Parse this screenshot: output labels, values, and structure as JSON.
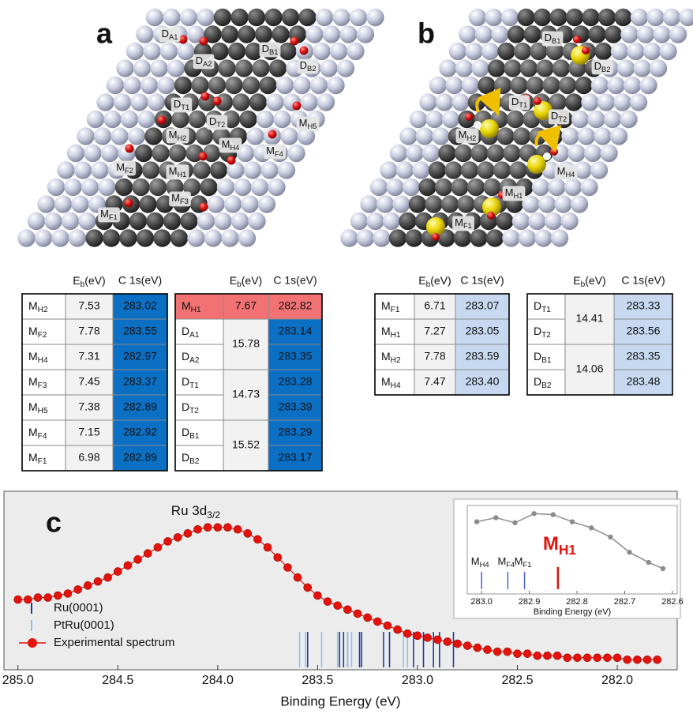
{
  "panel_a": {
    "letter": "a",
    "labels": [
      {
        "base": "D",
        "sub": "A1"
      },
      {
        "base": "D",
        "sub": "A2"
      },
      {
        "base": "D",
        "sub": "B1"
      },
      {
        "base": "D",
        "sub": "B2"
      },
      {
        "base": "D",
        "sub": "T1"
      },
      {
        "base": "D",
        "sub": "T2"
      },
      {
        "base": "M",
        "sub": "H5"
      },
      {
        "base": "M",
        "sub": "H2"
      },
      {
        "base": "M",
        "sub": "H4"
      },
      {
        "base": "M",
        "sub": "F4"
      },
      {
        "base": "M",
        "sub": "F2"
      },
      {
        "base": "M",
        "sub": "H1"
      },
      {
        "base": "M",
        "sub": "F3"
      },
      {
        "base": "M",
        "sub": "F1"
      }
    ],
    "tables": [
      {
        "eb_header": {
          "base": "E",
          "sub": "b",
          "suffix": "(eV)"
        },
        "c1s_header": "C 1s(eV)",
        "c1s_color": "#0b6fc4",
        "c1s_text_color": "#ffffff",
        "highlight_color": "#f27274",
        "groups": [
          {
            "eb": "7.53",
            "rows": [
              {
                "label": {
                  "base": "M",
                  "sub": "H2"
                },
                "c1s": "283.02"
              }
            ]
          },
          {
            "eb": "7.78",
            "rows": [
              {
                "label": {
                  "base": "M",
                  "sub": "F2"
                },
                "c1s": "283.55"
              }
            ]
          },
          {
            "eb": "7.31",
            "rows": [
              {
                "label": {
                  "base": "M",
                  "sub": "H4"
                },
                "c1s": "282.97"
              }
            ]
          },
          {
            "eb": "7.45",
            "rows": [
              {
                "label": {
                  "base": "M",
                  "sub": "F3"
                },
                "c1s": "283.37"
              }
            ]
          },
          {
            "eb": "7.38",
            "rows": [
              {
                "label": {
                  "base": "M",
                  "sub": "H5"
                },
                "c1s": "282.89"
              }
            ]
          },
          {
            "eb": "7.15",
            "rows": [
              {
                "label": {
                  "base": "M",
                  "sub": "F4"
                },
                "c1s": "282.92"
              }
            ]
          },
          {
            "eb": "6.98",
            "rows": [
              {
                "label": {
                  "base": "M",
                  "sub": "F1"
                },
                "c1s": "282.89"
              }
            ]
          }
        ]
      },
      {
        "eb_header": {
          "base": "E",
          "sub": "b",
          "suffix": "(eV)"
        },
        "c1s_header": "C 1s(eV)",
        "c1s_color": "#0b6fc4",
        "c1s_text_color": "#ffffff",
        "highlight_color": "#f27274",
        "groups": [
          {
            "eb": "7.67",
            "highlight": true,
            "rows": [
              {
                "label": {
                  "base": "M",
                  "sub": "H1"
                },
                "c1s": "282.82"
              }
            ]
          },
          {
            "eb": "15.78",
            "rows": [
              {
                "label": {
                  "base": "D",
                  "sub": "A1"
                },
                "c1s": "283.14"
              },
              {
                "label": {
                  "base": "D",
                  "sub": "A2"
                },
                "c1s": "283.35"
              }
            ]
          },
          {
            "eb": "14.73",
            "rows": [
              {
                "label": {
                  "base": "D",
                  "sub": "T1"
                },
                "c1s": "283.28"
              },
              {
                "label": {
                  "base": "D",
                  "sub": "T2"
                },
                "c1s": "283.39"
              }
            ]
          },
          {
            "eb": "15.52",
            "rows": [
              {
                "label": {
                  "base": "D",
                  "sub": "B1"
                },
                "c1s": "283.29"
              },
              {
                "label": {
                  "base": "D",
                  "sub": "B2"
                },
                "c1s": "283.17"
              }
            ]
          }
        ]
      }
    ]
  },
  "panel_b": {
    "letter": "b",
    "labels": [
      {
        "base": "D",
        "sub": "B1"
      },
      {
        "base": "D",
        "sub": "B2"
      },
      {
        "base": "D",
        "sub": "T1"
      },
      {
        "base": "D",
        "sub": "T2"
      },
      {
        "base": "M",
        "sub": "H2"
      },
      {
        "base": "M",
        "sub": "H4"
      },
      {
        "base": "M",
        "sub": "H1"
      },
      {
        "base": "M",
        "sub": "F1"
      }
    ],
    "tables": [
      {
        "eb_header": {
          "base": "E",
          "sub": "b",
          "suffix": "(eV)"
        },
        "c1s_header": "C 1s(eV)",
        "c1s_color": "#c6d9f0",
        "c1s_text_color": "#111111",
        "highlight_color": "#f27274",
        "groups": [
          {
            "eb": "6.71",
            "rows": [
              {
                "label": {
                  "base": "M",
                  "sub": "F1"
                },
                "c1s": "283.07"
              }
            ]
          },
          {
            "eb": "7.27",
            "rows": [
              {
                "label": {
                  "base": "M",
                  "sub": "H1"
                },
                "c1s": "283.05"
              }
            ]
          },
          {
            "eb": "7.78",
            "rows": [
              {
                "label": {
                  "base": "M",
                  "sub": "H2"
                },
                "c1s": "283.59"
              }
            ]
          },
          {
            "eb": "7.47",
            "rows": [
              {
                "label": {
                  "base": "M",
                  "sub": "H4"
                },
                "c1s": "283.40"
              }
            ]
          }
        ]
      },
      {
        "eb_header": {
          "base": "E",
          "sub": "b",
          "suffix": "(eV)"
        },
        "c1s_header": "C 1s(eV)",
        "c1s_color": "#c6d9f0",
        "c1s_text_color": "#111111",
        "highlight_color": "#f27274",
        "groups": [
          {
            "eb": "14.41",
            "rows": [
              {
                "label": {
                  "base": "D",
                  "sub": "T1"
                },
                "c1s": "283.33"
              },
              {
                "label": {
                  "base": "D",
                  "sub": "T2"
                },
                "c1s": "283.56"
              }
            ]
          },
          {
            "eb": "14.06",
            "rows": [
              {
                "label": {
                  "base": "D",
                  "sub": "B1"
                },
                "c1s": "283.35"
              },
              {
                "label": {
                  "base": "D",
                  "sub": "B2"
                },
                "c1s": "283.48"
              }
            ]
          }
        ]
      }
    ]
  },
  "chart_data": {
    "type": "line",
    "panel_letter": "c",
    "xlabel": "Binding Energy (eV)",
    "annotation": {
      "base": "Ru 3d",
      "sub": "3/2"
    },
    "xlim": [
      285.07,
      281.7
    ],
    "ylim": [
      0.12,
      1.01
    ],
    "xticks": [
      {
        "value": 285,
        "label": "285.0"
      },
      284.5,
      {
        "value": 284,
        "label": "284.0"
      },
      283.5,
      {
        "value": 283,
        "label": "283.0"
      },
      282.5,
      {
        "value": 282,
        "label": "282.0"
      }
    ],
    "legend": "lower left",
    "series": [
      {
        "name": "Ru(0001)",
        "color": "#1f3a9e",
        "style": "stick",
        "x": [
          283.02,
          283.55,
          282.97,
          283.37,
          282.89,
          282.92,
          282.89,
          282.82,
          283.14,
          283.35,
          283.28,
          283.39,
          283.29,
          283.17
        ]
      },
      {
        "name": "PtRu(0001)",
        "color": "#8cc4ee",
        "style": "stick",
        "x": [
          283.07,
          283.05,
          283.59,
          283.4,
          283.33,
          283.56,
          283.35,
          283.48
        ]
      },
      {
        "name": "Experimental spectrum",
        "color": "#e3120b",
        "style": "line-marker",
        "x": [
          285.0,
          284.95,
          284.9,
          284.85,
          284.8,
          284.75,
          284.7,
          284.65,
          284.6,
          284.55,
          284.5,
          284.45,
          284.4,
          284.35,
          284.3,
          284.25,
          284.2,
          284.15,
          284.1,
          284.05,
          284.0,
          283.95,
          283.9,
          283.85,
          283.8,
          283.75,
          283.7,
          283.65,
          283.6,
          283.55,
          283.5,
          283.45,
          283.4,
          283.35,
          283.3,
          283.25,
          283.2,
          283.15,
          283.1,
          283.05,
          283.0,
          282.95,
          282.9,
          282.85,
          282.8,
          282.75,
          282.7,
          282.65,
          282.6,
          282.55,
          282.5,
          282.45,
          282.4,
          282.35,
          282.3,
          282.25,
          282.2,
          282.15,
          282.1,
          282.05,
          282.0,
          281.95,
          281.9,
          281.85,
          281.8
        ],
        "values": [
          0.47,
          0.47,
          0.48,
          0.48,
          0.49,
          0.5,
          0.52,
          0.54,
          0.56,
          0.58,
          0.61,
          0.64,
          0.67,
          0.7,
          0.73,
          0.76,
          0.78,
          0.8,
          0.82,
          0.83,
          0.83,
          0.83,
          0.82,
          0.8,
          0.77,
          0.73,
          0.68,
          0.63,
          0.58,
          0.53,
          0.49,
          0.46,
          0.44,
          0.42,
          0.4,
          0.38,
          0.36,
          0.34,
          0.32,
          0.3,
          0.29,
          0.28,
          0.27,
          0.26,
          0.25,
          0.24,
          0.23,
          0.22,
          0.21,
          0.21,
          0.2,
          0.2,
          0.19,
          0.19,
          0.19,
          0.18,
          0.18,
          0.18,
          0.18,
          0.18,
          0.18,
          0.17,
          0.17,
          0.17,
          0.17
        ]
      }
    ],
    "inset": {
      "xlabel": "Binding Energy (eV)",
      "xlim": [
        283.03,
        282.59
      ],
      "ylim": [
        0.17,
        1.04
      ],
      "xticks": [
        {
          "value": 283,
          "label": "283.0"
        },
        282.9,
        282.8,
        282.7,
        282.6
      ],
      "line": {
        "color": "#8c8c8c",
        "x": [
          283.01,
          282.97,
          282.93,
          282.89,
          282.85,
          282.81,
          282.77,
          282.73,
          282.69,
          282.65,
          282.62
        ],
        "values": [
          0.88,
          0.92,
          0.87,
          0.96,
          0.95,
          0.88,
          0.82,
          0.73,
          0.58,
          0.48,
          0.42
        ]
      },
      "sticks": [
        {
          "label": {
            "base": "M",
            "sub": "H4"
          },
          "x": 283.0,
          "color": "#4a63c4"
        },
        {
          "label": {
            "base": "M",
            "sub": "F4"
          },
          "x": 282.945,
          "color": "#4a63c4"
        },
        {
          "label": {
            "base": "M",
            "sub": "F1"
          },
          "x": 282.91,
          "color": "#4a63c4"
        },
        {
          "label": {
            "base": "M",
            "sub": "H1"
          },
          "x": 282.84,
          "color": "#e3120b",
          "highlight": true
        }
      ]
    }
  }
}
